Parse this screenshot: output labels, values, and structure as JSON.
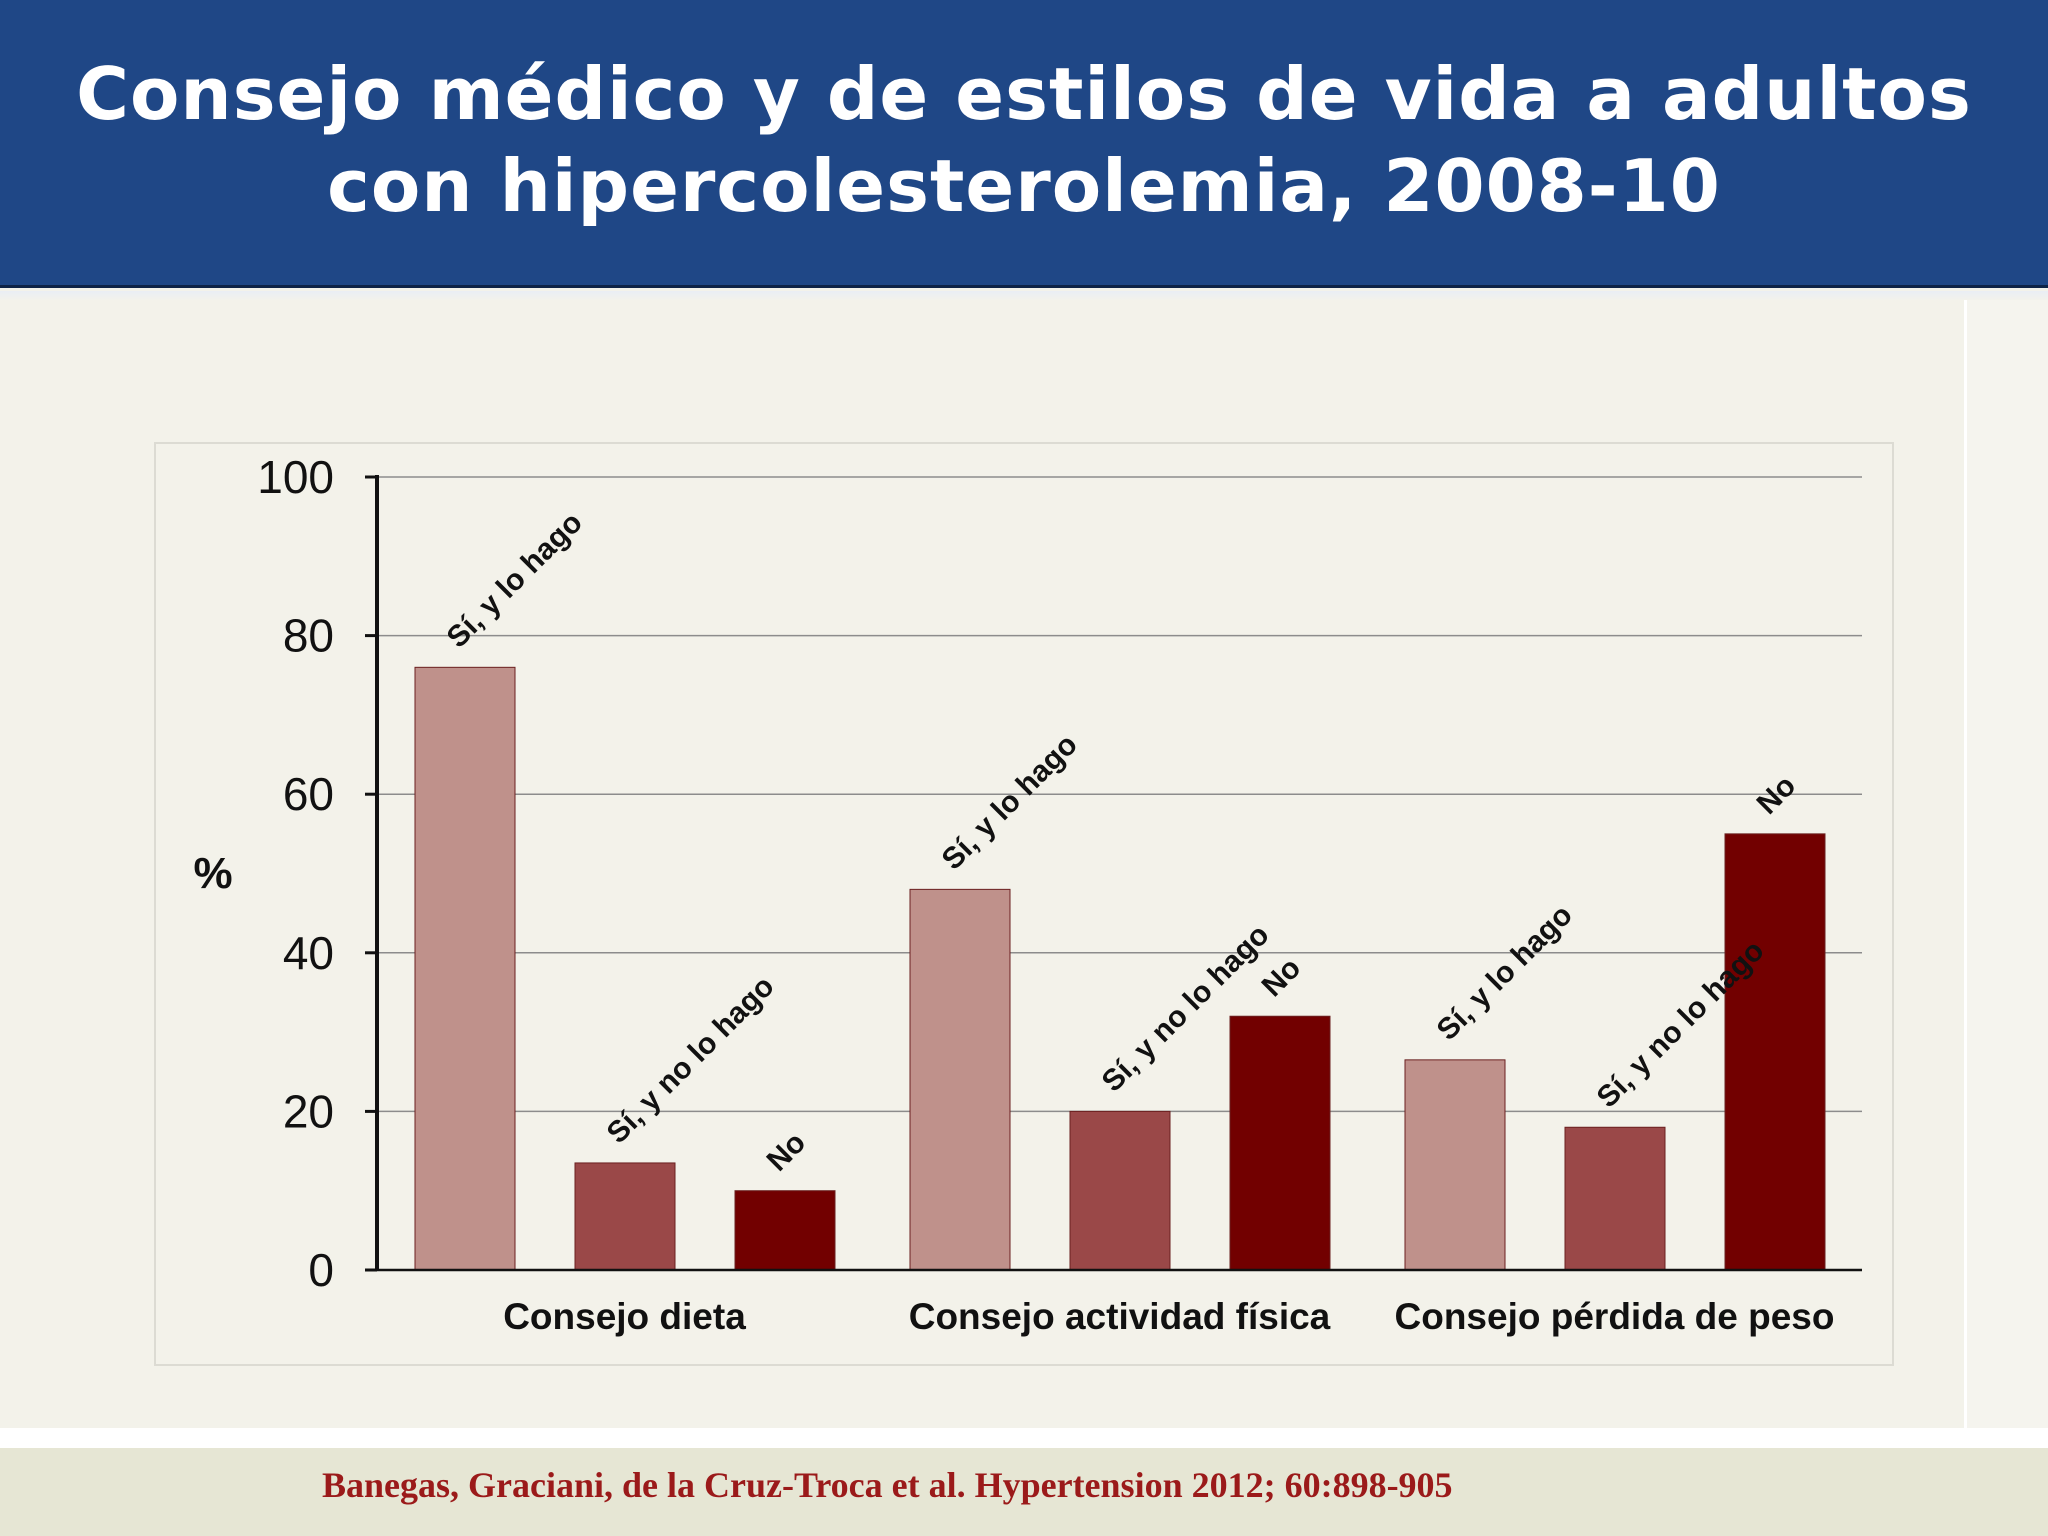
{
  "header": {
    "title_line1": "Consejo médico y de estilos de vida a adultos",
    "title_line2": "con hipercolesterolemia, 2008-10"
  },
  "footer": {
    "citation": "Banegas, Graciani, de la Cruz-Troca et al. Hypertension 2012; 60:898-905"
  },
  "colors": {
    "header_bg": "#1f4786",
    "bar_light": "#bf918b",
    "bar_medium": "#9a4848",
    "bar_dark": "#720000",
    "citation": "#9b1a1a"
  },
  "chart_data": {
    "type": "bar",
    "ylabel": "%",
    "ylim": [
      0,
      100
    ],
    "yticks": [
      "0",
      "20",
      "40",
      "60",
      "80",
      "100"
    ],
    "grid": true,
    "categories": [
      "Consejo dieta",
      "Consejo actividad física",
      "Consejo pérdida de peso"
    ],
    "series": [
      {
        "label": "Sí, y lo hago",
        "values": [
          76,
          48,
          26.5
        ]
      },
      {
        "label": "Sí, y no lo hago",
        "values": [
          13.5,
          20,
          18
        ]
      },
      {
        "label": "No",
        "values": [
          10,
          32,
          55
        ]
      }
    ]
  }
}
